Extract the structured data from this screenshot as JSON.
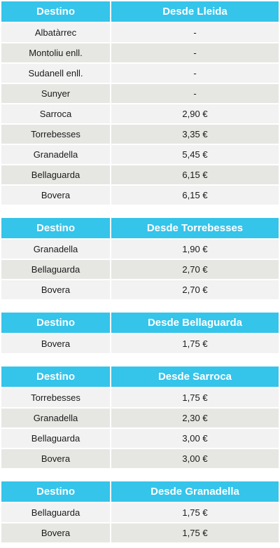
{
  "colors": {
    "header_bg": "#35c4ea",
    "header_text": "#ffffff",
    "row_light": "#f2f2f2",
    "row_dark": "#e6e6e2"
  },
  "tables": [
    {
      "header": [
        "Destino",
        "Desde Lleida"
      ],
      "rows": [
        [
          "Albatàrrec",
          "-"
        ],
        [
          "Montoliu enll.",
          "-"
        ],
        [
          "Sudanell enll.",
          "-"
        ],
        [
          "Sunyer",
          "-"
        ],
        [
          "Sarroca",
          "2,90 €"
        ],
        [
          "Torrebesses",
          "3,35 €"
        ],
        [
          "Granadella",
          "5,45 €"
        ],
        [
          "Bellaguarda",
          "6,15 €"
        ],
        [
          "Bovera",
          "6,15 €"
        ]
      ]
    },
    {
      "header": [
        "Destino",
        "Desde Torrebesses"
      ],
      "rows": [
        [
          "Granadella",
          "1,90 €"
        ],
        [
          "Bellaguarda",
          "2,70 €"
        ],
        [
          "Bovera",
          "2,70 €"
        ]
      ]
    },
    {
      "header": [
        "Destino",
        "Desde Bellaguarda"
      ],
      "rows": [
        [
          "Bovera",
          "1,75 €"
        ]
      ]
    },
    {
      "header": [
        "Destino",
        "Desde Sarroca"
      ],
      "rows": [
        [
          "Torrebesses",
          "1,75 €"
        ],
        [
          "Granadella",
          "2,30 €"
        ],
        [
          "Bellaguarda",
          "3,00 €"
        ],
        [
          "Bovera",
          "3,00 €"
        ]
      ]
    },
    {
      "header": [
        "Destino",
        "Desde Granadella"
      ],
      "rows": [
        [
          "Bellaguarda",
          "1,75 €"
        ],
        [
          "Bovera",
          "1,75 €"
        ]
      ]
    }
  ]
}
